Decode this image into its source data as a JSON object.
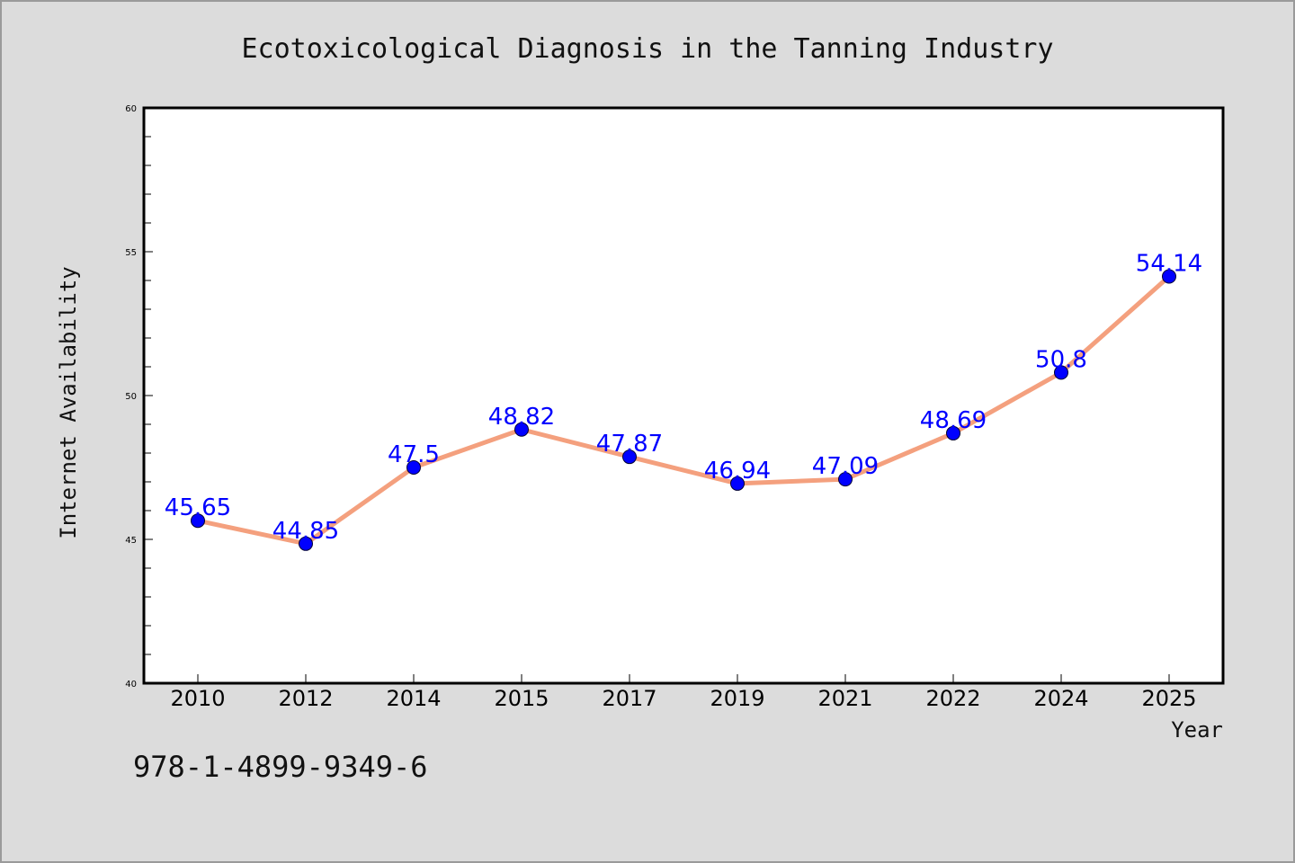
{
  "chart_data": {
    "type": "line",
    "title": "Ecotoxicological Diagnosis in the Tanning Industry",
    "xlabel": "Year",
    "ylabel": "Internet Availability",
    "categories": [
      "2010",
      "2012",
      "2014",
      "2015",
      "2017",
      "2019",
      "2021",
      "2022",
      "2024",
      "2025"
    ],
    "series": [
      {
        "values": [
          45.65,
          44.85,
          47.5,
          48.82,
          47.87,
          46.94,
          47.09,
          48.69,
          50.8,
          54.14
        ],
        "labels": [
          "45.65",
          "44.85",
          "47.5",
          "48.82",
          "47.87",
          "46.94",
          "47.09",
          "48.69",
          "50.8",
          "54.14"
        ]
      }
    ],
    "ylim": [
      40,
      60
    ],
    "yticks": [
      "40",
      "45",
      "50",
      "55",
      "60"
    ],
    "grid": false,
    "colors": {
      "line": "#f4a07e",
      "marker": "#0000ff",
      "label": "#0000ff",
      "background": "#dcdcdc",
      "plot": "#ffffff"
    }
  },
  "footer": {
    "isbn": "978-1-4899-9349-6"
  }
}
